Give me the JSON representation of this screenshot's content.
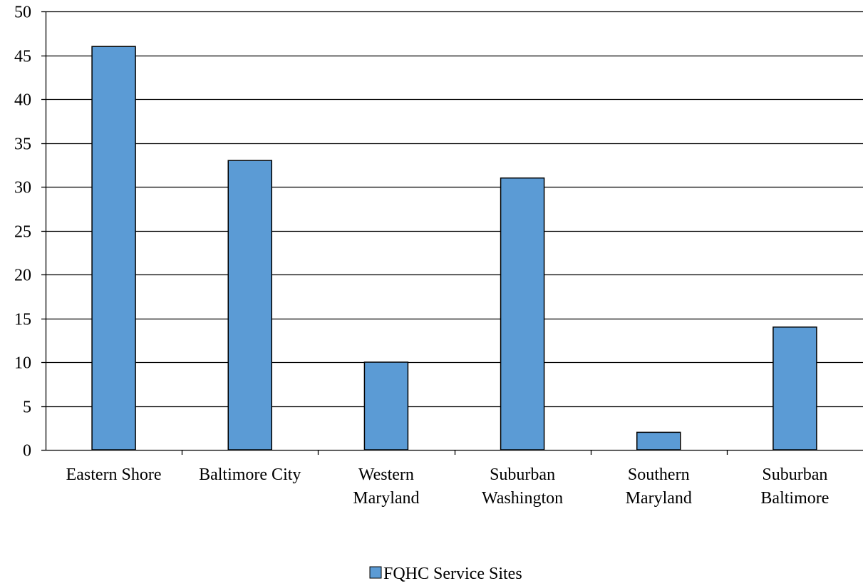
{
  "chart_data": {
    "type": "bar",
    "title": "",
    "xlabel": "",
    "ylabel": "",
    "categories": [
      [
        "Eastern Shore"
      ],
      [
        "Baltimore City"
      ],
      [
        "Western",
        "Maryland"
      ],
      [
        "Suburban",
        "Washington"
      ],
      [
        "Southern",
        "Maryland"
      ],
      [
        "Suburban",
        "Baltimore"
      ]
    ],
    "series": [
      {
        "name": "FQHC Service Sites",
        "values": [
          46,
          33,
          10,
          31,
          2,
          14
        ]
      }
    ],
    "ylim": [
      0,
      50
    ],
    "yticks": [
      0,
      5,
      10,
      15,
      20,
      25,
      30,
      35,
      40,
      45,
      50
    ],
    "grid": true,
    "legend_position": "bottom",
    "colors": {
      "bar": "#5b9bd5",
      "bar_stroke": "#000000",
      "grid": "#000000"
    }
  }
}
